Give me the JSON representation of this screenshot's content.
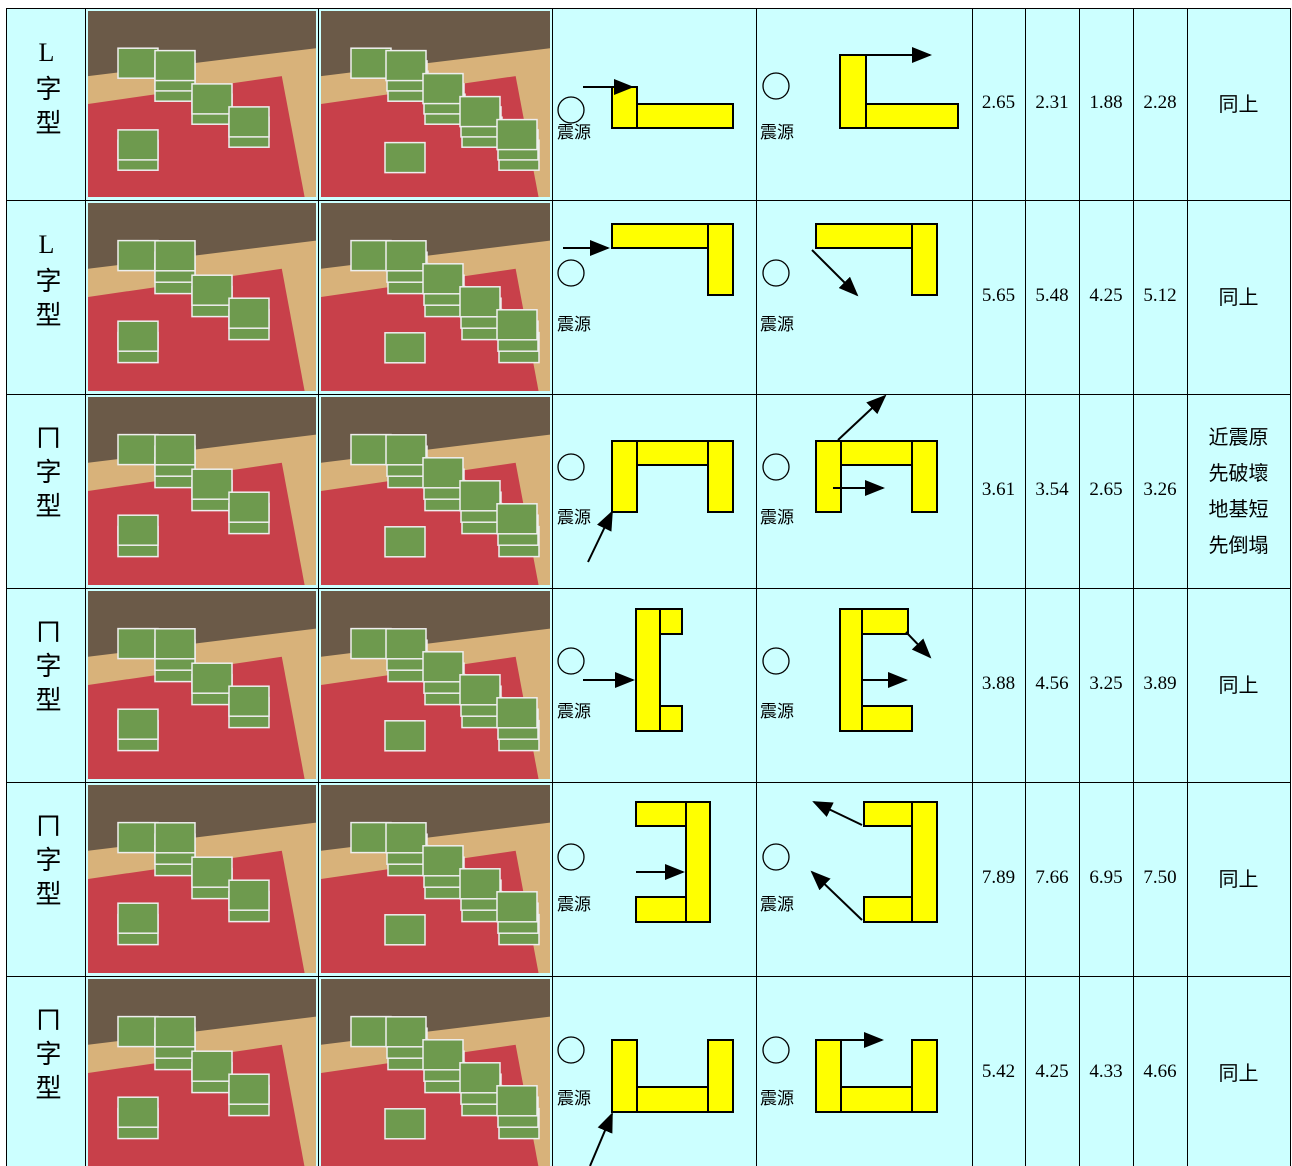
{
  "table": {
    "rows": [
      {
        "type": "L字型",
        "diagram_labels": [
          "震源",
          "震源"
        ],
        "values": [
          "2.65",
          "2.31",
          "1.88",
          "2.28"
        ],
        "note": [
          "同上"
        ]
      },
      {
        "type": "L字型",
        "diagram_labels": [
          "震源",
          "震源"
        ],
        "values": [
          "5.65",
          "5.48",
          "4.25",
          "5.12"
        ],
        "note": [
          "同上"
        ]
      },
      {
        "type": "ㄇ字型",
        "diagram_labels": [
          "震源",
          "震源"
        ],
        "values": [
          "3.61",
          "3.54",
          "2.65",
          "3.26"
        ],
        "note": [
          "近震原",
          "先破壞",
          "地基短",
          "先倒塌"
        ]
      },
      {
        "type": "ㄇ字型",
        "diagram_labels": [
          "震源",
          "震源"
        ],
        "values": [
          "3.88",
          "4.56",
          "3.25",
          "3.89"
        ],
        "note": [
          "同上"
        ]
      },
      {
        "type": "ㄇ字型",
        "diagram_labels": [
          "震源",
          "震源"
        ],
        "values": [
          "7.89",
          "7.66",
          "6.95",
          "7.50"
        ],
        "note": [
          "同上"
        ]
      },
      {
        "type": "ㄇ字型",
        "diagram_labels": [
          "震源",
          "震源"
        ],
        "values": [
          "5.42",
          "4.25",
          "4.33",
          "4.66"
        ],
        "note": [
          "同上"
        ]
      }
    ]
  }
}
